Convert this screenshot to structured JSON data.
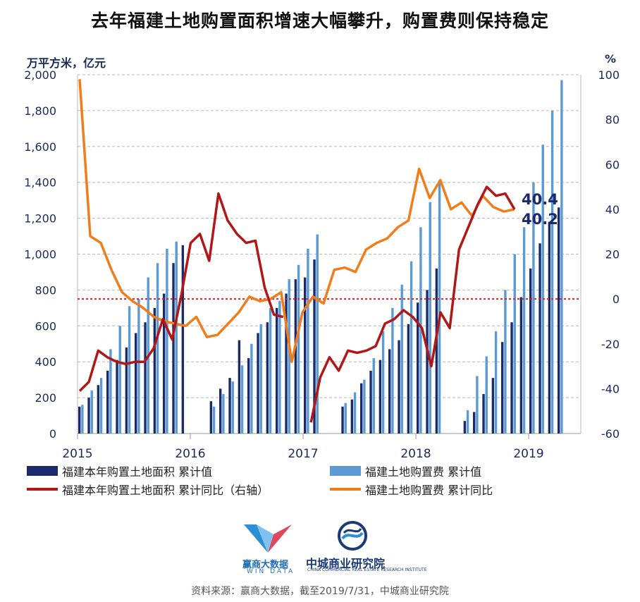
{
  "title": "去年福建土地购置面积增速大幅攀升，购置费则保持稳定",
  "left_unit": "万平方米，亿元",
  "right_unit": "%",
  "source": "资料来源：赢商大数据，截至2019/7/31，中城商业研究院",
  "logos": {
    "winshang_cn": "赢商大数据",
    "winshang_en": "WIN DATA",
    "zhongcheng_cn": "中城商业研究院",
    "zhongcheng_en": "CHINA COMMERCIAL REAL ESTATE RESEARCH INSTITUTE"
  },
  "colors": {
    "area_bar": "#1b2a6b",
    "fee_bar": "#5b9bd5",
    "area_yoy_line": "#b01818",
    "fee_yoy_line": "#f07d1a",
    "zero_ref_line": "#e02020",
    "annotation": "#1b2a6b"
  },
  "chart_data": {
    "type": "bar",
    "x_labels": [
      "2015",
      "2016",
      "2017",
      "2018",
      "2019"
    ],
    "y_left": {
      "ylim": [
        0,
        2000
      ],
      "ticks": [
        "0",
        "200",
        "400",
        "600",
        "800",
        "1,000",
        "1,200",
        "1,400",
        "1,600",
        "1,800",
        "2,000"
      ]
    },
    "y_right": {
      "ylim": [
        -60,
        100
      ],
      "ticks": [
        "-60",
        "-40",
        "-20",
        "0",
        "20",
        "40",
        "60",
        "80",
        "100"
      ]
    },
    "grid": true,
    "legend_placement": "bottom",
    "series": [
      {
        "name": "福建本年购置土地面积 累计值",
        "type": "bar",
        "axis": "left",
        "values": [
          150,
          200,
          270,
          350,
          410,
          480,
          560,
          620,
          700,
          780,
          950,
          1050,
          null,
          null,
          180,
          250,
          310,
          520,
          420,
          560,
          620,
          700,
          780,
          860,
          870,
          970,
          null,
          null,
          150,
          190,
          280,
          350,
          410,
          470,
          520,
          610,
          730,
          800,
          920,
          null,
          null,
          70,
          120,
          220,
          310,
          510,
          620,
          760,
          920,
          1060,
          1180,
          1260
        ]
      },
      {
        "name": "福建土地购置费 累计值",
        "type": "bar",
        "axis": "left",
        "values": [
          160,
          240,
          310,
          470,
          600,
          710,
          750,
          870,
          950,
          1030,
          1070,
          null,
          null,
          null,
          150,
          220,
          290,
          380,
          500,
          610,
          700,
          740,
          860,
          940,
          1030,
          1110,
          null,
          null,
          170,
          230,
          300,
          420,
          570,
          700,
          830,
          960,
          1150,
          1290,
          1400,
          null,
          null,
          130,
          320,
          430,
          570,
          800,
          1000,
          1150,
          1400,
          1610,
          1800,
          1970
        ]
      },
      {
        "name": "福建本年购置土地面积 累计同比（右轴）",
        "type": "line",
        "axis": "right",
        "values": [
          -41,
          -37,
          -23,
          -26,
          -28,
          -29,
          -28,
          -28,
          -22,
          -9,
          -18,
          2,
          25,
          29,
          17,
          47,
          35,
          29,
          25,
          26,
          5,
          -7,
          -8,
          null,
          null,
          -55,
          -35,
          -26,
          -32,
          -23,
          -24,
          -23,
          -21,
          -11,
          -9,
          -5,
          -8,
          -13,
          -30,
          -6,
          -13,
          22,
          32,
          42,
          50,
          46,
          47,
          40
        ]
      },
      {
        "name": "福建土地购置费 累计同比",
        "type": "line",
        "axis": "right",
        "values": [
          98,
          28,
          25,
          13,
          3,
          -1,
          -4,
          -8,
          -10,
          -11,
          -12,
          -8,
          -17,
          -16,
          -11,
          -6,
          1,
          -1,
          0,
          3,
          -28,
          -6,
          1,
          -2,
          13,
          14,
          12,
          22,
          25,
          27,
          32,
          35,
          58,
          45,
          53,
          40,
          43,
          37,
          46,
          41,
          39,
          40
        ]
      }
    ],
    "annotations": [
      "40.4",
      "40.2"
    ]
  },
  "legend": [
    {
      "label": "福建本年购置土地面积 累计值"
    },
    {
      "label": "福建土地购置费 累计值"
    },
    {
      "label": "福建本年购置土地面积 累计同比（右轴）"
    },
    {
      "label": "福建土地购置费 累计同比"
    }
  ]
}
